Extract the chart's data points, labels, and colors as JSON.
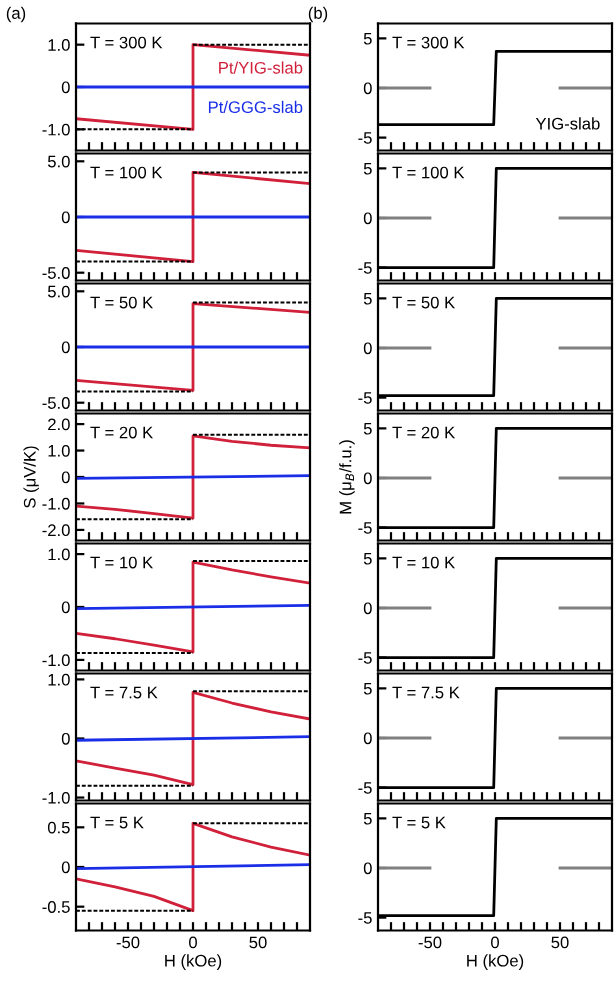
{
  "chart_data": [
    {
      "type": "line",
      "title": "(a)",
      "xlim": [
        -90,
        90
      ],
      "ylim": [
        -1.5,
        1.5
      ],
      "xticks": [
        {
          "value": -80,
          "label": null
        },
        {
          "value": -70,
          "label": null
        },
        {
          "value": -60,
          "label": null
        },
        {
          "value": -50,
          "label": null
        },
        {
          "value": -40,
          "label": null
        },
        {
          "value": -30,
          "label": null
        },
        {
          "value": -20,
          "label": null
        },
        {
          "value": -10,
          "label": null
        },
        {
          "value": 0,
          "label": null
        },
        {
          "value": 10,
          "label": null
        },
        {
          "value": 20,
          "label": null
        },
        {
          "value": 30,
          "label": null
        },
        {
          "value": 40,
          "label": null
        },
        {
          "value": 50,
          "label": null
        },
        {
          "value": 60,
          "label": null
        },
        {
          "value": 70,
          "label": null
        },
        {
          "value": 80,
          "label": null
        }
      ],
      "yticks": [
        {
          "value": 1,
          "label": "1.0"
        },
        0,
        {
          "value": -1,
          "label": "-1.0"
        }
      ],
      "tick_labels": "y",
      "annotations": [
        "T = 300 K"
      ],
      "series": [
        {
          "name": "Pt/YIG-slab",
          "color": "#d0203a",
          "x": [
            -90,
            0,
            0,
            90
          ],
          "values": [
            -0.75,
            -1.0,
            1.0,
            0.75
          ]
        },
        {
          "name": "Pt/GGG-slab",
          "color": "#1a2ee8",
          "x": [
            -90,
            90
          ],
          "values": [
            0,
            0
          ]
        },
        {
          "color": "#000000",
          "line_style": "dashed",
          "x": [
            0,
            90
          ],
          "values": [
            1.0,
            1.0
          ]
        },
        {
          "color": "#000000",
          "line_style": "dashed",
          "x": [
            -90,
            0
          ],
          "values": [
            -1.0,
            -1.0
          ]
        }
      ]
    },
    {
      "type": "line",
      "xlim": [
        -90,
        90
      ],
      "ylim": [
        -5.7,
        5.7
      ],
      "xticks": [
        {
          "value": -80,
          "label": null
        },
        {
          "value": -70,
          "label": null
        },
        {
          "value": -60,
          "label": null
        },
        {
          "value": -50,
          "label": null
        },
        {
          "value": -40,
          "label": null
        },
        {
          "value": -30,
          "label": null
        },
        {
          "value": -20,
          "label": null
        },
        {
          "value": -10,
          "label": null
        },
        {
          "value": 0,
          "label": null
        },
        {
          "value": 10,
          "label": null
        },
        {
          "value": 20,
          "label": null
        },
        {
          "value": 30,
          "label": null
        },
        {
          "value": 40,
          "label": null
        },
        {
          "value": 50,
          "label": null
        },
        {
          "value": 60,
          "label": null
        },
        {
          "value": 70,
          "label": null
        },
        {
          "value": 80,
          "label": null
        }
      ],
      "yticks": [
        {
          "value": 5,
          "label": "5.0"
        },
        0,
        {
          "value": -5,
          "label": "-5.0"
        }
      ],
      "tick_labels": "y",
      "annotations": [
        "T = 100 K"
      ],
      "series": [
        {
          "color": "#d0203a",
          "x": [
            -90,
            0,
            0,
            90
          ],
          "values": [
            -3.0,
            -4.0,
            4.0,
            3.0
          ]
        },
        {
          "color": "#1a2ee8",
          "x": [
            -90,
            90
          ],
          "values": [
            0,
            0
          ]
        },
        {
          "color": "#000000",
          "line_style": "dashed",
          "x": [
            0,
            90
          ],
          "values": [
            4.0,
            4.0
          ]
        },
        {
          "color": "#000000",
          "line_style": "dashed",
          "x": [
            -90,
            0
          ],
          "values": [
            -4.0,
            -4.0
          ]
        }
      ]
    },
    {
      "type": "line",
      "xlim": [
        -90,
        90
      ],
      "ylim": [
        -5.7,
        5.7
      ],
      "xticks": [
        {
          "value": -80,
          "label": null
        },
        {
          "value": -70,
          "label": null
        },
        {
          "value": -60,
          "label": null
        },
        {
          "value": -50,
          "label": null
        },
        {
          "value": -40,
          "label": null
        },
        {
          "value": -30,
          "label": null
        },
        {
          "value": -20,
          "label": null
        },
        {
          "value": -10,
          "label": null
        },
        {
          "value": 0,
          "label": null
        },
        {
          "value": 10,
          "label": null
        },
        {
          "value": 20,
          "label": null
        },
        {
          "value": 30,
          "label": null
        },
        {
          "value": 40,
          "label": null
        },
        {
          "value": 50,
          "label": null
        },
        {
          "value": 60,
          "label": null
        },
        {
          "value": 70,
          "label": null
        },
        {
          "value": 80,
          "label": null
        }
      ],
      "yticks": [
        {
          "value": 5,
          "label": "5.0"
        },
        0,
        {
          "value": -5,
          "label": "-5.0"
        }
      ],
      "tick_labels": "y",
      "annotations": [
        "T = 50 K"
      ],
      "series": [
        {
          "color": "#d0203a",
          "x": [
            -90,
            0,
            0,
            90
          ],
          "values": [
            -3.0,
            -3.9,
            3.9,
            3.1
          ]
        },
        {
          "color": "#1a2ee8",
          "x": [
            -90,
            90
          ],
          "values": [
            0,
            0
          ]
        },
        {
          "color": "#000000",
          "line_style": "dashed",
          "x": [
            0,
            90
          ],
          "values": [
            4.0,
            4.0
          ]
        },
        {
          "color": "#000000",
          "line_style": "dashed",
          "x": [
            -90,
            0
          ],
          "values": [
            -4.0,
            -4.0
          ]
        }
      ]
    },
    {
      "type": "line",
      "xlim": [
        -90,
        90
      ],
      "ylim": [
        -2.4,
        2.4
      ],
      "ylabel": "S (μV/K)",
      "xticks": [
        {
          "value": -80,
          "label": null
        },
        {
          "value": -70,
          "label": null
        },
        {
          "value": -60,
          "label": null
        },
        {
          "value": -50,
          "label": null
        },
        {
          "value": -40,
          "label": null
        },
        {
          "value": -30,
          "label": null
        },
        {
          "value": -20,
          "label": null
        },
        {
          "value": -10,
          "label": null
        },
        {
          "value": 0,
          "label": null
        },
        {
          "value": 10,
          "label": null
        },
        {
          "value": 20,
          "label": null
        },
        {
          "value": 30,
          "label": null
        },
        {
          "value": 40,
          "label": null
        },
        {
          "value": 50,
          "label": null
        },
        {
          "value": 60,
          "label": null
        },
        {
          "value": 70,
          "label": null
        },
        {
          "value": 80,
          "label": null
        }
      ],
      "yticks": [
        {
          "value": 2,
          "label": "2.0"
        },
        {
          "value": 1,
          "label": "1.0"
        },
        0,
        {
          "value": -1,
          "label": "-1.0"
        },
        {
          "value": -2,
          "label": "-2.0"
        }
      ],
      "tick_labels": "y",
      "annotations": [
        "T = 20 K"
      ],
      "series": [
        {
          "color": "#d0203a",
          "x": [
            -90,
            -60,
            -30,
            0,
            0,
            30,
            60,
            90
          ],
          "values": [
            -1.1,
            -1.22,
            -1.38,
            -1.55,
            1.55,
            1.35,
            1.2,
            1.1
          ]
        },
        {
          "color": "#1a2ee8",
          "x": [
            -90,
            90
          ],
          "values": [
            -0.05,
            0.05
          ]
        },
        {
          "color": "#000000",
          "line_style": "dashed",
          "x": [
            0,
            90
          ],
          "values": [
            1.6,
            1.6
          ]
        },
        {
          "color": "#000000",
          "line_style": "dashed",
          "x": [
            -90,
            0
          ],
          "values": [
            -1.6,
            -1.6
          ]
        }
      ]
    },
    {
      "type": "line",
      "xlim": [
        -90,
        90
      ],
      "ylim": [
        -1.2,
        1.2
      ],
      "xticks": [
        {
          "value": -80,
          "label": null
        },
        {
          "value": -70,
          "label": null
        },
        {
          "value": -60,
          "label": null
        },
        {
          "value": -50,
          "label": null
        },
        {
          "value": -40,
          "label": null
        },
        {
          "value": -30,
          "label": null
        },
        {
          "value": -20,
          "label": null
        },
        {
          "value": -10,
          "label": null
        },
        {
          "value": 0,
          "label": null
        },
        {
          "value": 10,
          "label": null
        },
        {
          "value": 20,
          "label": null
        },
        {
          "value": 30,
          "label": null
        },
        {
          "value": 40,
          "label": null
        },
        {
          "value": 50,
          "label": null
        },
        {
          "value": 60,
          "label": null
        },
        {
          "value": 70,
          "label": null
        },
        {
          "value": 80,
          "label": null
        }
      ],
      "yticks": [
        {
          "value": 1,
          "label": "1.0"
        },
        0,
        {
          "value": -1,
          "label": "-1.0"
        }
      ],
      "tick_labels": "y",
      "annotations": [
        "T = 10 K"
      ],
      "series": [
        {
          "color": "#d0203a",
          "x": [
            -90,
            -60,
            -30,
            0,
            0,
            30,
            60,
            90
          ],
          "values": [
            -0.5,
            -0.6,
            -0.72,
            -0.85,
            0.85,
            0.7,
            0.57,
            0.45
          ]
        },
        {
          "color": "#1a2ee8",
          "x": [
            -90,
            90
          ],
          "values": [
            -0.03,
            0.03
          ]
        },
        {
          "color": "#000000",
          "line_style": "dashed",
          "x": [
            0,
            90
          ],
          "values": [
            0.87,
            0.87
          ]
        },
        {
          "color": "#000000",
          "line_style": "dashed",
          "x": [
            -90,
            0
          ],
          "values": [
            -0.87,
            -0.87
          ]
        }
      ]
    },
    {
      "type": "line",
      "xlim": [
        -90,
        90
      ],
      "ylim": [
        -1.05,
        1.1
      ],
      "xticks": [
        {
          "value": -80,
          "label": null
        },
        {
          "value": -70,
          "label": null
        },
        {
          "value": -60,
          "label": null
        },
        {
          "value": -50,
          "label": null
        },
        {
          "value": -40,
          "label": null
        },
        {
          "value": -30,
          "label": null
        },
        {
          "value": -20,
          "label": null
        },
        {
          "value": -10,
          "label": null
        },
        {
          "value": 0,
          "label": null
        },
        {
          "value": 10,
          "label": null
        },
        {
          "value": 20,
          "label": null
        },
        {
          "value": 30,
          "label": null
        },
        {
          "value": 40,
          "label": null
        },
        {
          "value": 50,
          "label": null
        },
        {
          "value": 60,
          "label": null
        },
        {
          "value": 70,
          "label": null
        },
        {
          "value": 80,
          "label": null
        }
      ],
      "yticks": [
        {
          "value": 1,
          "label": "1.0"
        },
        0,
        {
          "value": -1,
          "label": "-1.0"
        }
      ],
      "tick_labels": "y",
      "annotations": [
        "T = 7.5 K"
      ],
      "series": [
        {
          "color": "#d0203a",
          "x": [
            -90,
            -60,
            -30,
            0,
            0,
            30,
            60,
            90
          ],
          "values": [
            -0.38,
            -0.5,
            -0.62,
            -0.78,
            0.78,
            0.6,
            0.45,
            0.33
          ]
        },
        {
          "color": "#1a2ee8",
          "x": [
            -90,
            90
          ],
          "values": [
            -0.03,
            0.03
          ]
        },
        {
          "color": "#000000",
          "line_style": "dashed",
          "x": [
            0,
            90
          ],
          "values": [
            0.8,
            0.8
          ]
        },
        {
          "color": "#000000",
          "line_style": "dashed",
          "x": [
            -90,
            0
          ],
          "values": [
            -0.8,
            -0.8
          ]
        }
      ]
    },
    {
      "type": "line",
      "xlim": [
        -90,
        90
      ],
      "ylim": [
        -0.8,
        0.8
      ],
      "xlabel": "H (kOe)",
      "xticks": [
        {
          "value": -80,
          "label": null
        },
        {
          "value": -70,
          "label": null
        },
        {
          "value": -60,
          "label": null
        },
        -50,
        {
          "value": -40,
          "label": null
        },
        {
          "value": -30,
          "label": null
        },
        {
          "value": -20,
          "label": null
        },
        {
          "value": -10,
          "label": null
        },
        0,
        {
          "value": 10,
          "label": null
        },
        {
          "value": 20,
          "label": null
        },
        {
          "value": 30,
          "label": null
        },
        {
          "value": 40,
          "label": null
        },
        50,
        {
          "value": 60,
          "label": null
        },
        {
          "value": 70,
          "label": null
        },
        {
          "value": 80,
          "label": null
        }
      ],
      "yticks": [
        0.5,
        0,
        -0.5
      ],
      "annotations": [
        "T = 5 K"
      ],
      "series": [
        {
          "color": "#d0203a",
          "x": [
            -90,
            -60,
            -30,
            0,
            0,
            30,
            60,
            90
          ],
          "values": [
            -0.15,
            -0.25,
            -0.37,
            -0.55,
            0.55,
            0.38,
            0.25,
            0.15
          ]
        },
        {
          "color": "#1a2ee8",
          "x": [
            -90,
            90
          ],
          "values": [
            -0.02,
            0.03
          ]
        },
        {
          "color": "#000000",
          "line_style": "dashed",
          "x": [
            0,
            90
          ],
          "values": [
            0.55,
            0.55
          ]
        },
        {
          "color": "#000000",
          "line_style": "dashed",
          "x": [
            -90,
            0
          ],
          "values": [
            -0.55,
            -0.55
          ]
        }
      ]
    },
    {
      "type": "line",
      "title": "(b)",
      "xlim": [
        -90,
        90
      ],
      "ylim": [
        -6.3,
        6.5
      ],
      "xticks": [
        {
          "value": -80,
          "label": null
        },
        {
          "value": -70,
          "label": null
        },
        {
          "value": -60,
          "label": null
        },
        {
          "value": -50,
          "label": null
        },
        {
          "value": -40,
          "label": null
        },
        {
          "value": -30,
          "label": null
        },
        {
          "value": -20,
          "label": null
        },
        {
          "value": -10,
          "label": null
        },
        {
          "value": 0,
          "label": null
        },
        {
          "value": 10,
          "label": null
        },
        {
          "value": 20,
          "label": null
        },
        {
          "value": 30,
          "label": null
        },
        {
          "value": 40,
          "label": null
        },
        {
          "value": 50,
          "label": null
        },
        {
          "value": 60,
          "label": null
        },
        {
          "value": 70,
          "label": null
        },
        {
          "value": 80,
          "label": null
        }
      ],
      "yticks": [
        5,
        0,
        -5
      ],
      "tick_labels": "y",
      "annotations": [
        "T = 300 K",
        "YIG-slab"
      ],
      "series": [
        {
          "color": "#000000",
          "x": [
            -90,
            -1,
            1,
            90
          ],
          "values": [
            -3.7,
            -3.7,
            3.7,
            3.7
          ]
        },
        {
          "color": "#808080",
          "x": [
            -90,
            -50,
            0,
            50,
            90
          ],
          "values": [
            0,
            0,
            null,
            0,
            0
          ]
        }
      ]
    },
    {
      "type": "line",
      "xlim": [
        -90,
        90
      ],
      "ylim": [
        -6.3,
        6.5
      ],
      "xticks": [
        {
          "value": -80,
          "label": null
        },
        {
          "value": -70,
          "label": null
        },
        {
          "value": -60,
          "label": null
        },
        {
          "value": -50,
          "label": null
        },
        {
          "value": -40,
          "label": null
        },
        {
          "value": -30,
          "label": null
        },
        {
          "value": -20,
          "label": null
        },
        {
          "value": -10,
          "label": null
        },
        {
          "value": 0,
          "label": null
        },
        {
          "value": 10,
          "label": null
        },
        {
          "value": 20,
          "label": null
        },
        {
          "value": 30,
          "label": null
        },
        {
          "value": 40,
          "label": null
        },
        {
          "value": 50,
          "label": null
        },
        {
          "value": 60,
          "label": null
        },
        {
          "value": 70,
          "label": null
        },
        {
          "value": 80,
          "label": null
        }
      ],
      "yticks": [
        5,
        0,
        -5
      ],
      "tick_labels": "y",
      "annotations": [
        "T = 100 K"
      ],
      "series": [
        {
          "color": "#000000",
          "x": [
            -90,
            -1,
            1,
            90
          ],
          "values": [
            -5,
            -5,
            5,
            5
          ]
        },
        {
          "color": "#808080",
          "x": [
            -90,
            -50,
            0,
            50,
            90
          ],
          "values": [
            0,
            0,
            null,
            0,
            0
          ]
        }
      ]
    },
    {
      "type": "line",
      "xlim": [
        -90,
        90
      ],
      "ylim": [
        -6.3,
        6.5
      ],
      "xticks": [
        {
          "value": -80,
          "label": null
        },
        {
          "value": -70,
          "label": null
        },
        {
          "value": -60,
          "label": null
        },
        {
          "value": -50,
          "label": null
        },
        {
          "value": -40,
          "label": null
        },
        {
          "value": -30,
          "label": null
        },
        {
          "value": -20,
          "label": null
        },
        {
          "value": -10,
          "label": null
        },
        {
          "value": 0,
          "label": null
        },
        {
          "value": 10,
          "label": null
        },
        {
          "value": 20,
          "label": null
        },
        {
          "value": 30,
          "label": null
        },
        {
          "value": 40,
          "label": null
        },
        {
          "value": 50,
          "label": null
        },
        {
          "value": 60,
          "label": null
        },
        {
          "value": 70,
          "label": null
        },
        {
          "value": 80,
          "label": null
        }
      ],
      "yticks": [
        5,
        0,
        -5
      ],
      "tick_labels": "y",
      "annotations": [
        "T = 50 K"
      ],
      "series": [
        {
          "color": "#000000",
          "x": [
            -90,
            -1,
            1,
            90
          ],
          "values": [
            -4.8,
            -4.8,
            5,
            5
          ]
        },
        {
          "color": "#808080",
          "x": [
            -90,
            -50,
            0,
            50,
            90
          ],
          "values": [
            0,
            0,
            null,
            0,
            0
          ]
        }
      ]
    },
    {
      "type": "line",
      "xlim": [
        -90,
        90
      ],
      "ylim": [
        -6.3,
        6.5
      ],
      "ylabel": "M (μ$_{B}$/f.u.)",
      "xticks": [
        {
          "value": -80,
          "label": null
        },
        {
          "value": -70,
          "label": null
        },
        {
          "value": -60,
          "label": null
        },
        {
          "value": -50,
          "label": null
        },
        {
          "value": -40,
          "label": null
        },
        {
          "value": -30,
          "label": null
        },
        {
          "value": -20,
          "label": null
        },
        {
          "value": -10,
          "label": null
        },
        {
          "value": 0,
          "label": null
        },
        {
          "value": 10,
          "label": null
        },
        {
          "value": 20,
          "label": null
        },
        {
          "value": 30,
          "label": null
        },
        {
          "value": 40,
          "label": null
        },
        {
          "value": 50,
          "label": null
        },
        {
          "value": 60,
          "label": null
        },
        {
          "value": 70,
          "label": null
        },
        {
          "value": 80,
          "label": null
        }
      ],
      "yticks": [
        5,
        0,
        -5
      ],
      "tick_labels": "y",
      "annotations": [
        "T = 20 K"
      ],
      "series": [
        {
          "color": "#000000",
          "x": [
            -90,
            -1,
            1,
            90
          ],
          "values": [
            -5,
            -5,
            5,
            5
          ]
        },
        {
          "color": "#808080",
          "x": [
            -90,
            -50,
            0,
            50,
            90
          ],
          "values": [
            0,
            0,
            null,
            0,
            0
          ]
        }
      ]
    },
    {
      "type": "line",
      "xlim": [
        -90,
        90
      ],
      "ylim": [
        -6.3,
        6.5
      ],
      "xticks": [
        {
          "value": -80,
          "label": null
        },
        {
          "value": -70,
          "label": null
        },
        {
          "value": -60,
          "label": null
        },
        {
          "value": -50,
          "label": null
        },
        {
          "value": -40,
          "label": null
        },
        {
          "value": -30,
          "label": null
        },
        {
          "value": -20,
          "label": null
        },
        {
          "value": -10,
          "label": null
        },
        {
          "value": 0,
          "label": null
        },
        {
          "value": 10,
          "label": null
        },
        {
          "value": 20,
          "label": null
        },
        {
          "value": 30,
          "label": null
        },
        {
          "value": 40,
          "label": null
        },
        {
          "value": 50,
          "label": null
        },
        {
          "value": 60,
          "label": null
        },
        {
          "value": 70,
          "label": null
        },
        {
          "value": 80,
          "label": null
        }
      ],
      "yticks": [
        5,
        0,
        -5
      ],
      "tick_labels": "y",
      "annotations": [
        "T = 10 K"
      ],
      "series": [
        {
          "color": "#000000",
          "x": [
            -90,
            -1,
            1,
            90
          ],
          "values": [
            -5,
            -5,
            5,
            5
          ]
        },
        {
          "color": "#808080",
          "x": [
            -90,
            -50,
            0,
            50,
            90
          ],
          "values": [
            0,
            0,
            null,
            0,
            0
          ]
        }
      ]
    },
    {
      "type": "line",
      "xlim": [
        -90,
        90
      ],
      "ylim": [
        -6.3,
        6.5
      ],
      "xticks": [
        {
          "value": -80,
          "label": null
        },
        {
          "value": -70,
          "label": null
        },
        {
          "value": -60,
          "label": null
        },
        {
          "value": -50,
          "label": null
        },
        {
          "value": -40,
          "label": null
        },
        {
          "value": -30,
          "label": null
        },
        {
          "value": -20,
          "label": null
        },
        {
          "value": -10,
          "label": null
        },
        {
          "value": 0,
          "label": null
        },
        {
          "value": 10,
          "label": null
        },
        {
          "value": 20,
          "label": null
        },
        {
          "value": 30,
          "label": null
        },
        {
          "value": 40,
          "label": null
        },
        {
          "value": 50,
          "label": null
        },
        {
          "value": 60,
          "label": null
        },
        {
          "value": 70,
          "label": null
        },
        {
          "value": 80,
          "label": null
        }
      ],
      "yticks": [
        5,
        0,
        -5
      ],
      "tick_labels": "y",
      "annotations": [
        "T = 7.5 K"
      ],
      "series": [
        {
          "color": "#000000",
          "x": [
            -90,
            -1,
            1,
            90
          ],
          "values": [
            -5,
            -5,
            5,
            5
          ]
        },
        {
          "color": "#808080",
          "x": [
            -90,
            -50,
            0,
            50,
            90
          ],
          "values": [
            0,
            0,
            null,
            0,
            0
          ]
        }
      ]
    },
    {
      "type": "line",
      "xlim": [
        -90,
        90
      ],
      "ylim": [
        -6.3,
        6.5
      ],
      "xlabel": "H (kOe)",
      "xticks": [
        {
          "value": -80,
          "label": null
        },
        {
          "value": -70,
          "label": null
        },
        {
          "value": -60,
          "label": null
        },
        -50,
        {
          "value": -40,
          "label": null
        },
        {
          "value": -30,
          "label": null
        },
        {
          "value": -20,
          "label": null
        },
        {
          "value": -10,
          "label": null
        },
        0,
        {
          "value": 10,
          "label": null
        },
        {
          "value": 20,
          "label": null
        },
        {
          "value": 30,
          "label": null
        },
        {
          "value": 40,
          "label": null
        },
        50,
        {
          "value": 60,
          "label": null
        },
        {
          "value": 70,
          "label": null
        },
        {
          "value": 80,
          "label": null
        }
      ],
      "yticks": [
        5,
        0,
        -5
      ],
      "annotations": [
        "T = 5 K"
      ],
      "series": [
        {
          "color": "#000000",
          "x": [
            -90,
            -1,
            1,
            90
          ],
          "values": [
            -4.8,
            -4.8,
            5,
            5
          ]
        },
        {
          "color": "#808080",
          "x": [
            -90,
            -50,
            0,
            50,
            90
          ],
          "values": [
            0,
            0,
            null,
            0,
            0
          ]
        }
      ]
    }
  ]
}
